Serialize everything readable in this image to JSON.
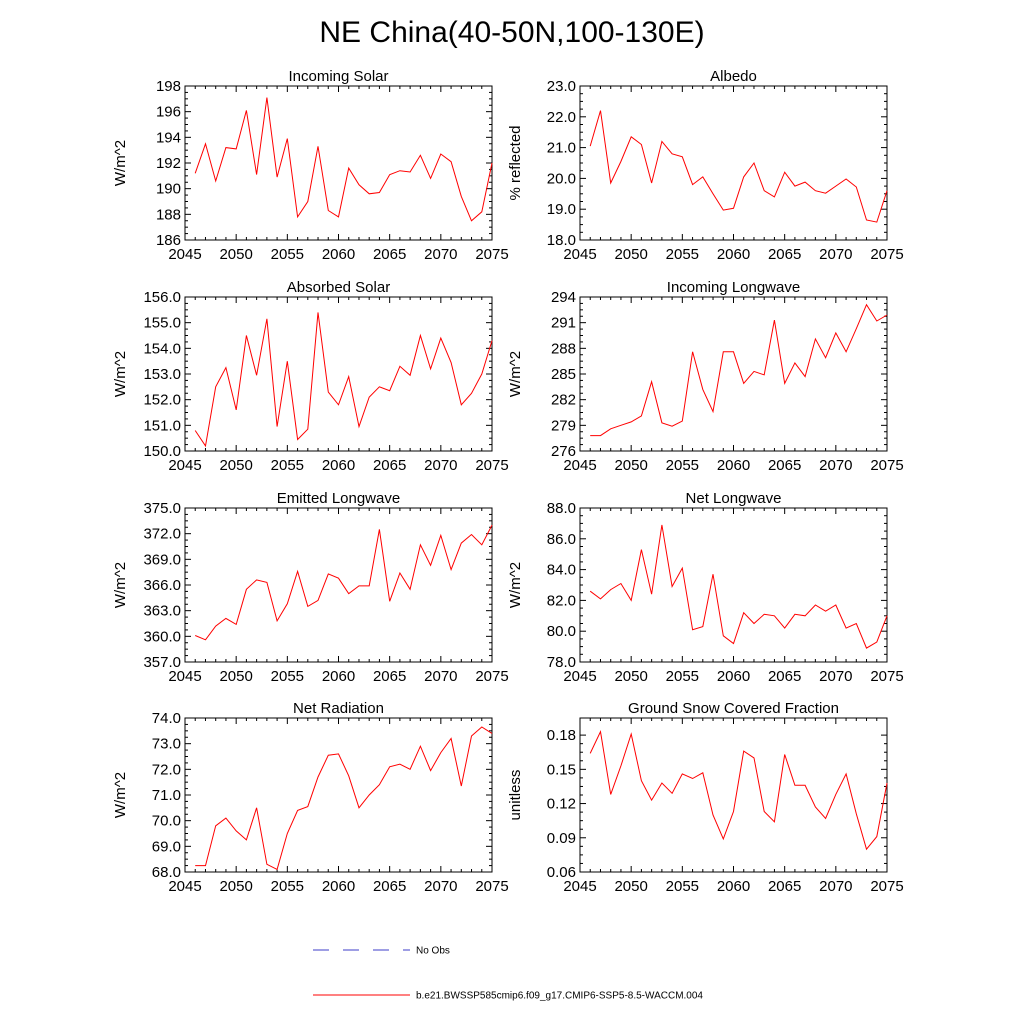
{
  "figure": {
    "title": "NE China(40-50N,100-130E)"
  },
  "chart_data": [
    {
      "type": "line",
      "title": "Incoming Solar",
      "ylabel": "W/m^2",
      "xlabel": "",
      "xlim": [
        2045,
        2075
      ],
      "ylim": [
        186,
        198
      ],
      "xticks": [
        2045,
        2050,
        2055,
        2060,
        2065,
        2070,
        2075
      ],
      "yticks": [
        186,
        188,
        190,
        192,
        194,
        196,
        198
      ],
      "ytick_labels": [
        "186",
        "188",
        "190",
        "192",
        "194",
        "196",
        "198"
      ],
      "series": [
        {
          "name": "b.e21.BWSSP585cmip6.f09_g17.CMIP6-SSP5-8.5-WACCM.004",
          "color": "#ff0000",
          "x": [
            2046,
            2047,
            2048,
            2049,
            2050,
            2051,
            2052,
            2053,
            2054,
            2055,
            2056,
            2057,
            2058,
            2059,
            2060,
            2061,
            2062,
            2063,
            2064,
            2065,
            2066,
            2067,
            2068,
            2069,
            2070,
            2071,
            2072,
            2073,
            2074,
            2075
          ],
          "values": [
            191.2,
            193.5,
            190.6,
            193.2,
            193.1,
            196.1,
            191.1,
            197.1,
            190.9,
            193.9,
            187.8,
            189.0,
            193.3,
            188.3,
            187.8,
            191.6,
            190.3,
            189.6,
            189.7,
            191.1,
            191.4,
            191.3,
            192.6,
            190.8,
            192.7,
            192.1,
            189.4,
            187.5,
            188.2,
            192.0
          ]
        }
      ]
    },
    {
      "type": "line",
      "title": "Albedo",
      "ylabel": "% reflected",
      "xlabel": "",
      "xlim": [
        2045,
        2075
      ],
      "ylim": [
        18,
        23
      ],
      "xticks": [
        2045,
        2050,
        2055,
        2060,
        2065,
        2070,
        2075
      ],
      "yticks": [
        18,
        19,
        20,
        21,
        22,
        23
      ],
      "ytick_labels": [
        "18.0",
        "19.0",
        "20.0",
        "21.0",
        "22.0",
        "23.0"
      ],
      "series": [
        {
          "name": "b.e21.BWSSP585cmip6.f09_g17.CMIP6-SSP5-8.5-WACCM.004",
          "color": "#ff0000",
          "x": [
            2046,
            2047,
            2048,
            2049,
            2050,
            2051,
            2052,
            2053,
            2054,
            2055,
            2056,
            2057,
            2058,
            2059,
            2060,
            2061,
            2062,
            2063,
            2064,
            2065,
            2066,
            2067,
            2068,
            2069,
            2070,
            2071,
            2072,
            2073,
            2074,
            2075
          ],
          "values": [
            21.05,
            22.2,
            19.85,
            20.55,
            21.35,
            21.1,
            19.85,
            21.2,
            20.8,
            20.7,
            19.8,
            20.05,
            19.5,
            18.97,
            19.03,
            20.05,
            20.5,
            19.6,
            19.4,
            20.2,
            19.75,
            19.88,
            19.6,
            19.52,
            19.75,
            19.98,
            19.72,
            18.65,
            18.58,
            19.6
          ]
        }
      ]
    },
    {
      "type": "line",
      "title": "Absorbed Solar",
      "ylabel": "W/m^2",
      "xlabel": "",
      "xlim": [
        2045,
        2075
      ],
      "ylim": [
        150,
        156
      ],
      "xticks": [
        2045,
        2050,
        2055,
        2060,
        2065,
        2070,
        2075
      ],
      "yticks": [
        150,
        151,
        152,
        153,
        154,
        155,
        156
      ],
      "ytick_labels": [
        "150.0",
        "151.0",
        "152.0",
        "153.0",
        "154.0",
        "155.0",
        "156.0"
      ],
      "series": [
        {
          "name": "b.e21.BWSSP585cmip6.f09_g17.CMIP6-SSP5-8.5-WACCM.004",
          "color": "#ff0000",
          "x": [
            2046,
            2047,
            2048,
            2049,
            2050,
            2051,
            2052,
            2053,
            2054,
            2055,
            2056,
            2057,
            2058,
            2059,
            2060,
            2061,
            2062,
            2063,
            2064,
            2065,
            2066,
            2067,
            2068,
            2069,
            2070,
            2071,
            2072,
            2073,
            2074,
            2075
          ],
          "values": [
            150.8,
            150.2,
            152.5,
            153.25,
            151.6,
            154.5,
            152.95,
            155.15,
            150.95,
            153.5,
            150.45,
            150.85,
            155.4,
            152.3,
            151.8,
            152.9,
            150.95,
            152.1,
            152.5,
            152.35,
            153.3,
            152.95,
            154.5,
            153.2,
            154.4,
            153.45,
            151.8,
            152.25,
            153.0,
            154.3
          ]
        }
      ]
    },
    {
      "type": "line",
      "title": "Incoming Longwave",
      "ylabel": "W/m^2",
      "xlabel": "",
      "xlim": [
        2045,
        2075
      ],
      "ylim": [
        276,
        294
      ],
      "xticks": [
        2045,
        2050,
        2055,
        2060,
        2065,
        2070,
        2075
      ],
      "yticks": [
        276,
        279,
        282,
        285,
        288,
        291,
        294
      ],
      "ytick_labels": [
        "276",
        "279",
        "282",
        "285",
        "288",
        "291",
        "294"
      ],
      "series": [
        {
          "name": "b.e21.BWSSP585cmip6.f09_g17.CMIP6-SSP5-8.5-WACCM.004",
          "color": "#ff0000",
          "x": [
            2046,
            2047,
            2048,
            2049,
            2050,
            2051,
            2052,
            2053,
            2054,
            2055,
            2056,
            2057,
            2058,
            2059,
            2060,
            2061,
            2062,
            2063,
            2064,
            2065,
            2066,
            2067,
            2068,
            2069,
            2070,
            2071,
            2072,
            2073,
            2074,
            2075
          ],
          "values": [
            277.8,
            277.8,
            278.6,
            279.0,
            279.4,
            280.1,
            284.1,
            279.3,
            278.9,
            279.5,
            287.6,
            283.2,
            280.6,
            287.6,
            287.6,
            283.9,
            285.3,
            284.9,
            291.3,
            283.9,
            286.3,
            284.7,
            289.1,
            286.9,
            289.8,
            287.6,
            290.3,
            293.1,
            291.2,
            291.9
          ]
        }
      ]
    },
    {
      "type": "line",
      "title": "Emitted Longwave",
      "ylabel": "W/m^2",
      "xlabel": "",
      "xlim": [
        2045,
        2075
      ],
      "ylim": [
        357,
        375
      ],
      "xticks": [
        2045,
        2050,
        2055,
        2060,
        2065,
        2070,
        2075
      ],
      "yticks": [
        357,
        360,
        363,
        366,
        369,
        372,
        375
      ],
      "ytick_labels": [
        "357.0",
        "360.0",
        "363.0",
        "366.0",
        "369.0",
        "372.0",
        "375.0"
      ],
      "series": [
        {
          "name": "b.e21.BWSSP585cmip6.f09_g17.CMIP6-SSP5-8.5-WACCM.004",
          "color": "#ff0000",
          "x": [
            2046,
            2047,
            2048,
            2049,
            2050,
            2051,
            2052,
            2053,
            2054,
            2055,
            2056,
            2057,
            2058,
            2059,
            2060,
            2061,
            2062,
            2063,
            2064,
            2065,
            2066,
            2067,
            2068,
            2069,
            2070,
            2071,
            2072,
            2073,
            2074,
            2075
          ],
          "values": [
            360.1,
            359.6,
            361.2,
            362.1,
            361.4,
            365.5,
            366.6,
            366.3,
            361.8,
            363.8,
            367.6,
            363.5,
            364.2,
            367.3,
            366.8,
            365.0,
            365.9,
            365.9,
            372.5,
            364.1,
            367.4,
            365.5,
            370.7,
            368.3,
            371.8,
            367.8,
            370.9,
            371.9,
            370.7,
            373.0
          ]
        }
      ]
    },
    {
      "type": "line",
      "title": "Net Longwave",
      "ylabel": "W/m^2",
      "xlabel": "",
      "xlim": [
        2045,
        2075
      ],
      "ylim": [
        78,
        88
      ],
      "xticks": [
        2045,
        2050,
        2055,
        2060,
        2065,
        2070,
        2075
      ],
      "yticks": [
        78,
        80,
        82,
        84,
        86,
        88
      ],
      "ytick_labels": [
        "78.0",
        "80.0",
        "82.0",
        "84.0",
        "86.0",
        "88.0"
      ],
      "series": [
        {
          "name": "b.e21.BWSSP585cmip6.f09_g17.CMIP6-SSP5-8.5-WACCM.004",
          "color": "#ff0000",
          "x": [
            2046,
            2047,
            2048,
            2049,
            2050,
            2051,
            2052,
            2053,
            2054,
            2055,
            2056,
            2057,
            2058,
            2059,
            2060,
            2061,
            2062,
            2063,
            2064,
            2065,
            2066,
            2067,
            2068,
            2069,
            2070,
            2071,
            2072,
            2073,
            2074,
            2075
          ],
          "values": [
            82.6,
            82.1,
            82.7,
            83.1,
            82.0,
            85.3,
            82.4,
            86.9,
            82.9,
            84.1,
            80.1,
            80.3,
            83.7,
            79.7,
            79.2,
            81.2,
            80.5,
            81.1,
            81.0,
            80.2,
            81.1,
            81.0,
            81.7,
            81.3,
            81.7,
            80.2,
            80.5,
            78.9,
            79.3,
            81.0
          ]
        }
      ]
    },
    {
      "type": "line",
      "title": "Net Radiation",
      "ylabel": "W/m^2",
      "xlabel": "",
      "xlim": [
        2045,
        2075
      ],
      "ylim": [
        68,
        74
      ],
      "xticks": [
        2045,
        2050,
        2055,
        2060,
        2065,
        2070,
        2075
      ],
      "yticks": [
        68,
        69,
        70,
        71,
        72,
        73,
        74
      ],
      "ytick_labels": [
        "68.0",
        "69.0",
        "70.0",
        "71.0",
        "72.0",
        "73.0",
        "74.0"
      ],
      "series": [
        {
          "name": "b.e21.BWSSP585cmip6.f09_g17.CMIP6-SSP5-8.5-WACCM.004",
          "color": "#ff0000",
          "x": [
            2046,
            2047,
            2048,
            2049,
            2050,
            2051,
            2052,
            2053,
            2054,
            2055,
            2056,
            2057,
            2058,
            2059,
            2060,
            2061,
            2062,
            2063,
            2064,
            2065,
            2066,
            2067,
            2068,
            2069,
            2070,
            2071,
            2072,
            2073,
            2074,
            2075
          ],
          "values": [
            68.25,
            68.25,
            69.8,
            70.1,
            69.6,
            69.25,
            70.5,
            68.3,
            68.1,
            69.5,
            70.4,
            70.55,
            71.7,
            72.55,
            72.6,
            71.75,
            70.5,
            71.0,
            71.4,
            72.1,
            72.2,
            72.0,
            72.9,
            71.95,
            72.65,
            73.2,
            71.35,
            73.3,
            73.65,
            73.4
          ]
        }
      ]
    },
    {
      "type": "line",
      "title": "Ground Snow Covered Fraction",
      "ylabel": "unitless",
      "xlabel": "",
      "xlim": [
        2045,
        2075
      ],
      "ylim": [
        0.06,
        0.195
      ],
      "xticks": [
        2045,
        2050,
        2055,
        2060,
        2065,
        2070,
        2075
      ],
      "yticks": [
        0.06,
        0.09,
        0.12,
        0.15,
        0.18
      ],
      "ytick_labels": [
        "0.06",
        "0.09",
        "0.12",
        "0.15",
        "0.18"
      ],
      "series": [
        {
          "name": "b.e21.BWSSP585cmip6.f09_g17.CMIP6-SSP5-8.5-WACCM.004",
          "color": "#ff0000",
          "x": [
            2046,
            2047,
            2048,
            2049,
            2050,
            2051,
            2052,
            2053,
            2054,
            2055,
            2056,
            2057,
            2058,
            2059,
            2060,
            2061,
            2062,
            2063,
            2064,
            2065,
            2066,
            2067,
            2068,
            2069,
            2070,
            2071,
            2072,
            2073,
            2074,
            2075
          ],
          "values": [
            0.164,
            0.183,
            0.128,
            0.153,
            0.181,
            0.14,
            0.123,
            0.138,
            0.129,
            0.146,
            0.142,
            0.147,
            0.11,
            0.089,
            0.113,
            0.166,
            0.16,
            0.113,
            0.104,
            0.163,
            0.136,
            0.136,
            0.117,
            0.107,
            0.128,
            0.146,
            0.111,
            0.08,
            0.091,
            0.138
          ]
        }
      ]
    }
  ],
  "legend": {
    "entries": [
      {
        "label": "No Obs",
        "color": "#3c3cc8",
        "style": "dashed"
      },
      {
        "label": "b.e21.BWSSP585cmip6.f09_g17.CMIP6-SSP5-8.5-WACCM.004",
        "color": "#ff0000",
        "style": "solid"
      }
    ]
  }
}
